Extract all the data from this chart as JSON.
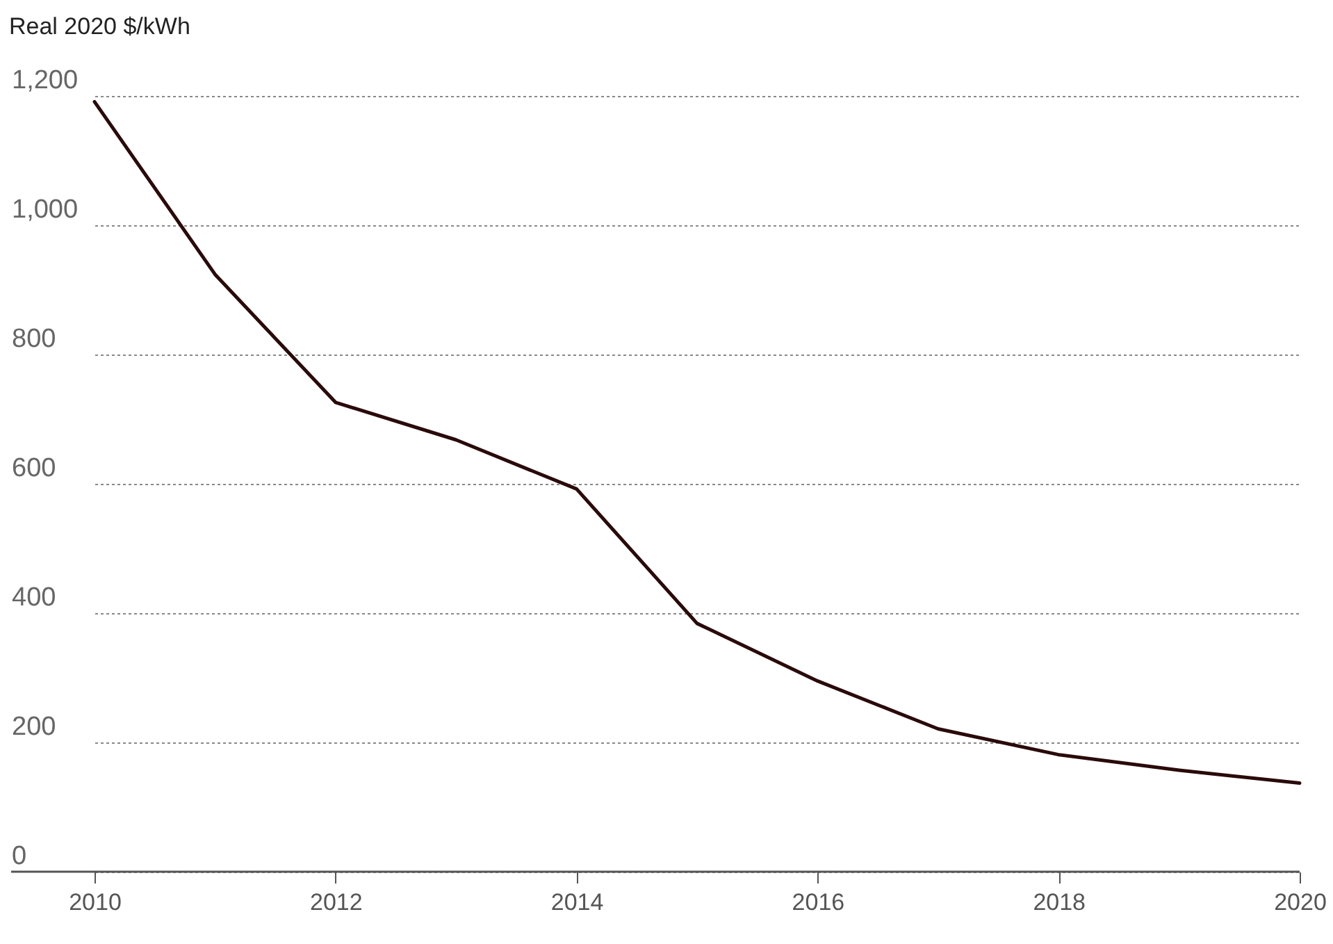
{
  "chart_data": {
    "type": "line",
    "ylabel": "Real 2020 $/kWh",
    "x": [
      2010,
      2011,
      2012,
      2013,
      2014,
      2015,
      2016,
      2017,
      2018,
      2019,
      2020
    ],
    "series": [
      {
        "color": "#2a0a0a",
        "values": [
          1191,
          924,
          726,
          668,
          592,
          384,
          295,
          221,
          181,
          157,
          137
        ]
      }
    ],
    "xlim": [
      2010,
      2020
    ],
    "xticks": [
      2010,
      2012,
      2014,
      2016,
      2018,
      2020
    ],
    "ylim": [
      0,
      1200
    ],
    "yticks": [
      {
        "value": 0,
        "label": "0"
      },
      {
        "value": 200,
        "label": "200"
      },
      {
        "value": 400,
        "label": "400"
      },
      {
        "value": 600,
        "label": "600"
      },
      {
        "value": 800,
        "label": "800"
      },
      {
        "value": 1000,
        "label": "1,000"
      },
      {
        "value": 1200,
        "label": "1,200"
      }
    ],
    "grid": "y",
    "marker": "none",
    "line_style": "solid"
  }
}
